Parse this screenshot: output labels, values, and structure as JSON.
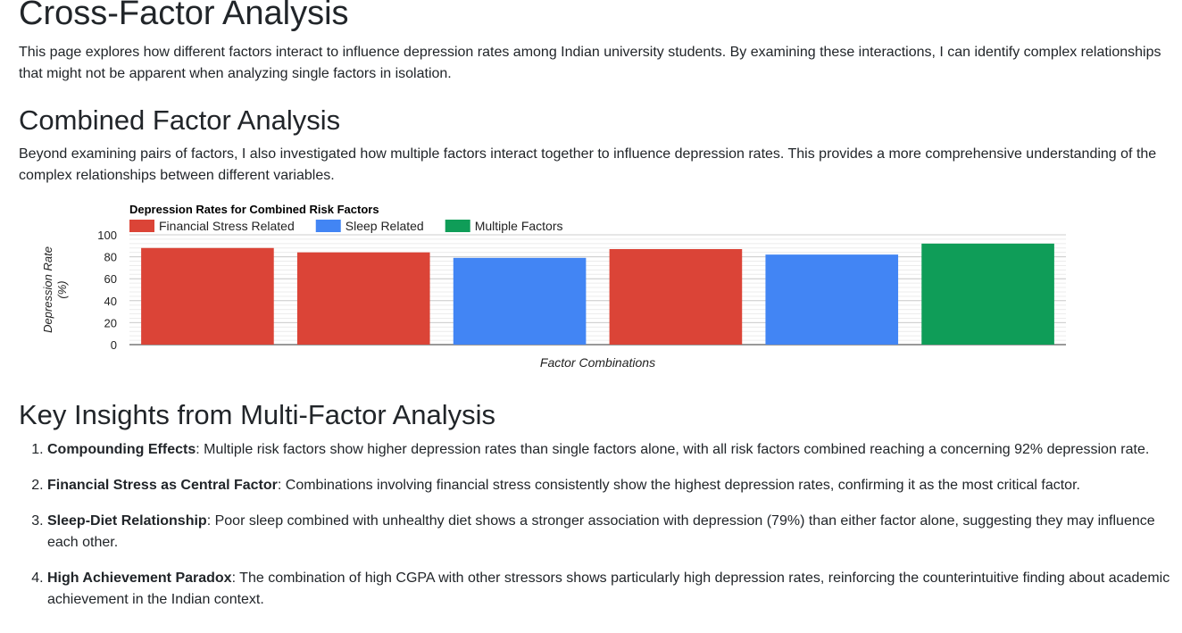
{
  "page": {
    "title": "Cross-Factor Analysis",
    "intro": "This page explores how different factors interact to influence depression rates among Indian university students. By examining these interactions, I can identify complex relationships that might not be apparent when analyzing single factors in isolation."
  },
  "combined": {
    "heading": "Combined Factor Analysis",
    "description": "Beyond examining pairs of factors, I also investigated how multiple factors interact together to influence depression rates. This provides a more comprehensive understanding of the complex relationships between different variables."
  },
  "chart_data": {
    "type": "bar",
    "title": "Depression Rates for Combined Risk Factors",
    "xlabel": "Factor Combinations",
    "ylabel": "Depression Rate (%)",
    "ylim": [
      0,
      100
    ],
    "yticks": [
      0,
      20,
      40,
      60,
      80,
      100
    ],
    "grid": true,
    "legend_position": "top-left",
    "legend": [
      {
        "name": "Financial Stress Related",
        "color": "#db4437"
      },
      {
        "name": "Sleep Related",
        "color": "#4285f4"
      },
      {
        "name": "Multiple Factors",
        "color": "#0f9d58"
      }
    ],
    "bars": [
      {
        "value": 88,
        "group": 0
      },
      {
        "value": 84,
        "group": 0
      },
      {
        "value": 79,
        "group": 1
      },
      {
        "value": 87,
        "group": 0
      },
      {
        "value": 82,
        "group": 1
      },
      {
        "value": 92,
        "group": 2
      }
    ]
  },
  "insights": {
    "heading": "Key Insights from Multi-Factor Analysis",
    "items": [
      {
        "title": "Compounding Effects",
        "text": ": Multiple risk factors show higher depression rates than single factors alone, with all risk factors combined reaching a concerning 92% depression rate."
      },
      {
        "title": "Financial Stress as Central Factor",
        "text": ": Combinations involving financial stress consistently show the highest depression rates, confirming it as the most critical factor."
      },
      {
        "title": "Sleep-Diet Relationship",
        "text": ": Poor sleep combined with unhealthy diet shows a stronger association with depression (79%) than either factor alone, suggesting they may influence each other."
      },
      {
        "title": "High Achievement Paradox",
        "text": ": The combination of high CGPA with other stressors shows particularly high depression rates, reinforcing the counterintuitive finding about academic achievement in the Indian context."
      }
    ]
  }
}
